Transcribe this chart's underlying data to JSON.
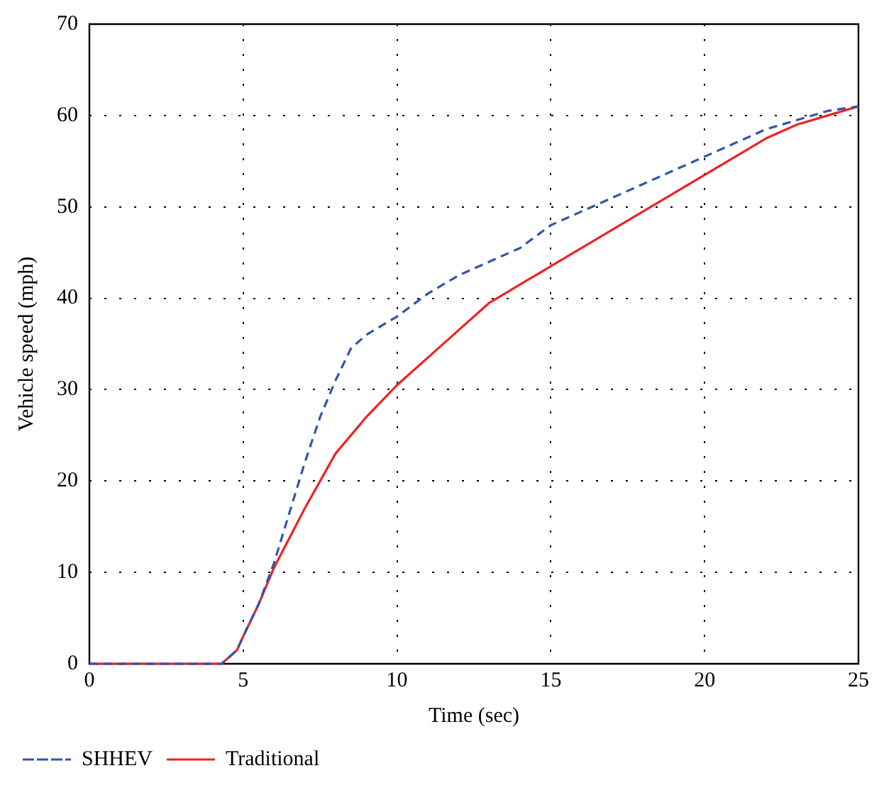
{
  "chart_data": {
    "type": "line",
    "xlabel": "Time (sec)",
    "ylabel": "Vehicle speed (mph)",
    "xlim": [
      0,
      25
    ],
    "xticks": [
      0,
      5,
      10,
      15,
      20,
      25
    ],
    "ylim": [
      0,
      70
    ],
    "yticks": [
      0,
      10,
      20,
      30,
      40,
      50,
      60,
      70
    ],
    "grid": true,
    "legend": "bottom left",
    "marker": "none",
    "series": [
      {
        "name": "SHHEV",
        "color": "#3355aa",
        "line_style": "dashed",
        "x": [
          0,
          4.3,
          4.8,
          5,
          5.5,
          6,
          6.5,
          7,
          7.5,
          8,
          8.5,
          9,
          10,
          11,
          12,
          13,
          14,
          15,
          16,
          17,
          18,
          19,
          20,
          21,
          22,
          23,
          24,
          25
        ],
        "values": [
          0,
          0,
          1.5,
          3,
          6.5,
          11,
          16.5,
          22,
          27,
          31,
          34.5,
          36,
          38,
          40.5,
          42.5,
          44,
          45.5,
          48,
          49.5,
          51,
          52.5,
          54,
          55.5,
          57,
          58.5,
          59.5,
          60.5,
          61
        ]
      },
      {
        "name": "Traditional",
        "color": "#ee2222",
        "line_style": "solid",
        "x": [
          0,
          4.3,
          4.8,
          5,
          5.5,
          6,
          7,
          8,
          9,
          10,
          11,
          12,
          13,
          14,
          15,
          16,
          17,
          18,
          19,
          20,
          21,
          22,
          23,
          24,
          25
        ],
        "values": [
          0,
          0,
          1.5,
          3,
          6.5,
          10.5,
          17,
          23,
          27,
          30.5,
          33.5,
          36.5,
          39.5,
          41.5,
          43.5,
          45.5,
          47.5,
          49.5,
          51.5,
          53.5,
          55.5,
          57.5,
          59,
          60,
          61
        ]
      }
    ]
  }
}
